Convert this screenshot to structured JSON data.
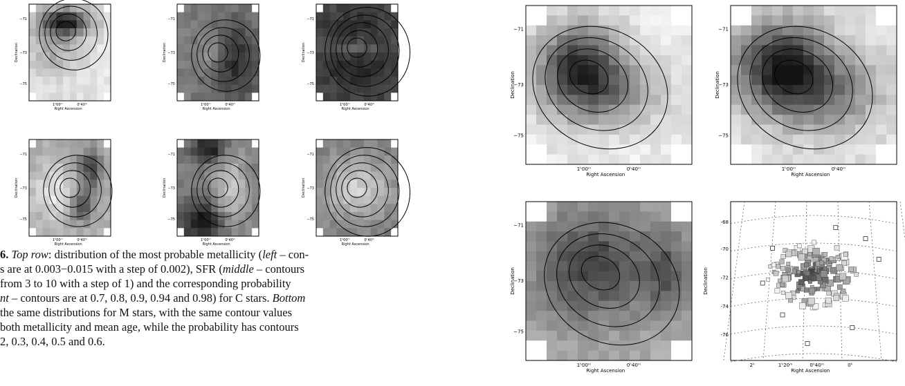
{
  "common": {
    "ylabel": "Declination",
    "xlabel": "Right Ascension",
    "yticks": [
      "−71",
      "−73",
      "−75"
    ],
    "xticks": [
      "1ʰ00ᵐ",
      "0ʰ40ᵐ"
    ]
  },
  "map_ticks": {
    "yticks": [
      "-68",
      "-70",
      "-72",
      "-74",
      "-76"
    ],
    "xticks": [
      "2ʰ",
      "1ʰ20ᵐ",
      "0ʰ40ᵐ",
      "0ʰ"
    ],
    "xlabel": "Right Ascension"
  },
  "caption": {
    "p1": "6. ",
    "top_row": "Top row",
    "p2": ": distribution of the most probable metallicity (",
    "left1": "left",
    "p3": " – con-",
    "line2": "s are at 0.003−0.015 with a step of 0.002), SFR (",
    "middle": "middle",
    "p4": " – contours",
    "line3": "from 3 to 10 with a step of 1) and the corresponding probability",
    "right": "nt",
    "p5": " – contours are at 0.7, 0.8, 0.9, 0.94 and 0.98) for C stars. ",
    "bottom": "Bottom",
    "line5": "the same distributions for M stars, with the same contour values",
    "line6": "both metallicity and mean age, while the probability has contours",
    "line7": "2, 0.3, 0.4, 0.5 and 0.6."
  }
}
